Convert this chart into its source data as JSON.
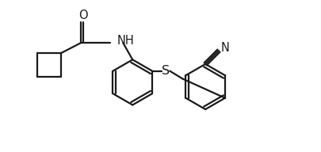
{
  "bg_color": "#ffffff",
  "line_color": "#1a1a1a",
  "line_width": 1.6,
  "font_size": 10.5,
  "fig_width": 4.06,
  "fig_height": 1.92,
  "dpi": 100,
  "xlim": [
    0,
    10
  ],
  "ylim": [
    0,
    4.8
  ]
}
